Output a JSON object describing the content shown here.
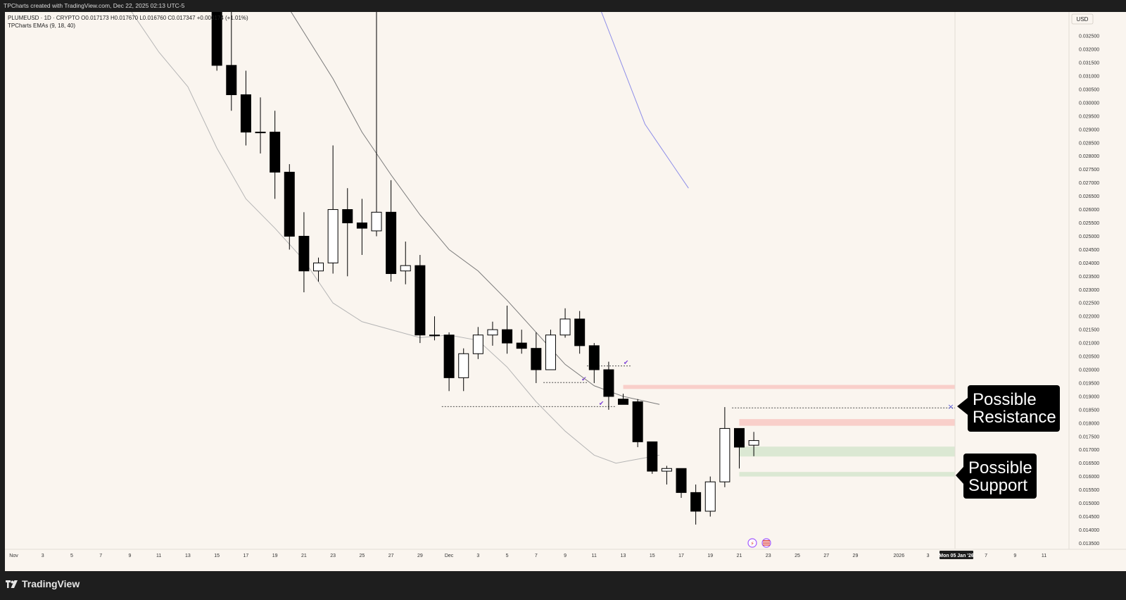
{
  "header": {
    "watermark_text": "TPCharts created with TradingView.com, Dec 22, 2025 02:13 UTC-5"
  },
  "legend": {
    "symbol_line": "PLUMEUSD · 1D · CRYPTO  O0.017173  H0.017670  L0.016760  C0.017347  +0.000174 (+1.01%)",
    "indicator_line": "TPCharts EMAs (9, 18, 40)"
  },
  "footer": {
    "logo_text": "TradingView"
  },
  "annotations": {
    "resistance": [
      "Possible",
      "Resistance"
    ],
    "support": [
      "Possible",
      "Support"
    ]
  },
  "colors": {
    "background": "#faf5ef",
    "chrome": "#1e1e1e",
    "candle_up_fill": "#ffffff",
    "candle_down_fill": "#000000",
    "resistance_zone": "#f8cbc5",
    "support_zone": "#d7e7cf",
    "ema9": "#b5b5b5",
    "ema18": "#7a7a7a",
    "ema40": "#8e8ee8",
    "check_marks": "#7b3fd6"
  },
  "chart_data": {
    "type": "candlestick",
    "symbol": "PLUMEUSD",
    "interval": "1D",
    "currency_label": "USD",
    "grid": false,
    "y_ticks": [
      "0.032500",
      "0.032000",
      "0.031500",
      "0.031000",
      "0.030500",
      "0.030000",
      "0.029500",
      "0.029000",
      "0.028500",
      "0.028000",
      "0.027500",
      "0.027000",
      "0.026500",
      "0.026000",
      "0.025500",
      "0.025000",
      "0.024500",
      "0.024000",
      "0.023500",
      "0.023000",
      "0.022500",
      "0.022000",
      "0.021500",
      "0.021000",
      "0.020500",
      "0.020000",
      "0.019500",
      "0.019000",
      "0.018500",
      "0.018000",
      "0.017500",
      "0.017000",
      "0.016500",
      "0.016000",
      "0.015500",
      "0.015000",
      "0.014500",
      "0.014000",
      "0.013500"
    ],
    "ylim": [
      0.0133,
      0.0334
    ],
    "x_tick_labels": [
      {
        "label": "Nov",
        "i": -7
      },
      {
        "label": "3",
        "i": -5
      },
      {
        "label": "5",
        "i": -3
      },
      {
        "label": "7",
        "i": -1
      },
      {
        "label": "9",
        "i": 1
      },
      {
        "label": "11",
        "i": 3
      },
      {
        "label": "13",
        "i": 5
      },
      {
        "label": "15",
        "i": 7
      },
      {
        "label": "17",
        "i": 9
      },
      {
        "label": "19",
        "i": 11
      },
      {
        "label": "21",
        "i": 13
      },
      {
        "label": "23",
        "i": 15
      },
      {
        "label": "25",
        "i": 17
      },
      {
        "label": "27",
        "i": 19
      },
      {
        "label": "29",
        "i": 21
      },
      {
        "label": "Dec",
        "i": 23
      },
      {
        "label": "3",
        "i": 25
      },
      {
        "label": "5",
        "i": 27
      },
      {
        "label": "7",
        "i": 29
      },
      {
        "label": "9",
        "i": 31
      },
      {
        "label": "11",
        "i": 33
      },
      {
        "label": "13",
        "i": 35
      },
      {
        "label": "15",
        "i": 37
      },
      {
        "label": "17",
        "i": 39
      },
      {
        "label": "19",
        "i": 41
      },
      {
        "label": "21",
        "i": 43
      },
      {
        "label": "23",
        "i": 45
      },
      {
        "label": "25",
        "i": 47
      },
      {
        "label": "27",
        "i": 49
      },
      {
        "label": "29",
        "i": 51
      },
      {
        "label": "2026",
        "i": 54
      },
      {
        "label": "3",
        "i": 56
      },
      {
        "label": "7",
        "i": 60
      },
      {
        "label": "9",
        "i": 62
      },
      {
        "label": "11",
        "i": 64
      }
    ],
    "crosshair_date_label": "Mon 05 Jan '26",
    "crosshair_i": 58,
    "candles": [
      {
        "d": "Nov 15",
        "o": 0.0337,
        "h": 0.0337,
        "l": 0.0312,
        "c": 0.0314
      },
      {
        "d": "Nov 16",
        "o": 0.0314,
        "h": 0.0337,
        "l": 0.0297,
        "c": 0.0303
      },
      {
        "d": "Nov 17",
        "o": 0.0303,
        "h": 0.0312,
        "l": 0.0284,
        "c": 0.0289
      },
      {
        "d": "Nov 18",
        "o": 0.0289,
        "h": 0.0302,
        "l": 0.0281,
        "c": 0.0289
      },
      {
        "d": "Nov 19",
        "o": 0.0289,
        "h": 0.0297,
        "l": 0.0264,
        "c": 0.0274
      },
      {
        "d": "Nov 20",
        "o": 0.0274,
        "h": 0.0277,
        "l": 0.0245,
        "c": 0.025
      },
      {
        "d": "Nov 21",
        "o": 0.025,
        "h": 0.0259,
        "l": 0.0229,
        "c": 0.0237
      },
      {
        "d": "Nov 22",
        "o": 0.0237,
        "h": 0.0242,
        "l": 0.0233,
        "c": 0.024
      },
      {
        "d": "Nov 23",
        "o": 0.024,
        "h": 0.0284,
        "l": 0.0236,
        "c": 0.026
      },
      {
        "d": "Nov 24",
        "o": 0.026,
        "h": 0.0268,
        "l": 0.0235,
        "c": 0.0255
      },
      {
        "d": "Nov 25",
        "o": 0.0255,
        "h": 0.0264,
        "l": 0.0243,
        "c": 0.0253
      },
      {
        "d": "Nov 26",
        "o": 0.0252,
        "h": 0.0337,
        "l": 0.025,
        "c": 0.0259
      },
      {
        "d": "Nov 27",
        "o": 0.0259,
        "h": 0.0271,
        "l": 0.0233,
        "c": 0.0236
      },
      {
        "d": "Nov 28",
        "o": 0.0237,
        "h": 0.0248,
        "l": 0.0232,
        "c": 0.0239
      },
      {
        "d": "Nov 29",
        "o": 0.0239,
        "h": 0.0243,
        "l": 0.021,
        "c": 0.0213
      },
      {
        "d": "Nov 30",
        "o": 0.0213,
        "h": 0.022,
        "l": 0.0211,
        "c": 0.0213
      },
      {
        "d": "Dec 1",
        "o": 0.0213,
        "h": 0.0214,
        "l": 0.0192,
        "c": 0.0197
      },
      {
        "d": "Dec 2",
        "o": 0.0197,
        "h": 0.0208,
        "l": 0.0192,
        "c": 0.0206
      },
      {
        "d": "Dec 3",
        "o": 0.0206,
        "h": 0.0216,
        "l": 0.0204,
        "c": 0.0213
      },
      {
        "d": "Dec 4",
        "o": 0.0213,
        "h": 0.0218,
        "l": 0.0209,
        "c": 0.0215
      },
      {
        "d": "Dec 5",
        "o": 0.0215,
        "h": 0.0224,
        "l": 0.0206,
        "c": 0.021
      },
      {
        "d": "Dec 6",
        "o": 0.021,
        "h": 0.0215,
        "l": 0.0206,
        "c": 0.0208
      },
      {
        "d": "Dec 7",
        "o": 0.0208,
        "h": 0.0214,
        "l": 0.0195,
        "c": 0.02
      },
      {
        "d": "Dec 8",
        "o": 0.02,
        "h": 0.0215,
        "l": 0.02,
        "c": 0.0213
      },
      {
        "d": "Dec 9",
        "o": 0.0213,
        "h": 0.0223,
        "l": 0.0212,
        "c": 0.0219
      },
      {
        "d": "Dec 10",
        "o": 0.0219,
        "h": 0.0222,
        "l": 0.0206,
        "c": 0.0209
      },
      {
        "d": "Dec 11",
        "o": 0.0209,
        "h": 0.021,
        "l": 0.0195,
        "c": 0.02
      },
      {
        "d": "Dec 12",
        "o": 0.02,
        "h": 0.0203,
        "l": 0.0185,
        "c": 0.019
      },
      {
        "d": "Dec 13",
        "o": 0.0189,
        "h": 0.0191,
        "l": 0.0187,
        "c": 0.0187
      },
      {
        "d": "Dec 14",
        "o": 0.0188,
        "h": 0.0189,
        "l": 0.0171,
        "c": 0.0173
      },
      {
        "d": "Dec 15",
        "o": 0.0173,
        "h": 0.0173,
        "l": 0.0161,
        "c": 0.0162
      },
      {
        "d": "Dec 16",
        "o": 0.0162,
        "h": 0.0164,
        "l": 0.0157,
        "c": 0.0163
      },
      {
        "d": "Dec 17",
        "o": 0.0163,
        "h": 0.0163,
        "l": 0.0152,
        "c": 0.0154
      },
      {
        "d": "Dec 18",
        "o": 0.0154,
        "h": 0.0157,
        "l": 0.0142,
        "c": 0.0147
      },
      {
        "d": "Dec 19",
        "o": 0.0147,
        "h": 0.016,
        "l": 0.0145,
        "c": 0.0158
      },
      {
        "d": "Dec 20",
        "o": 0.0158,
        "h": 0.0186,
        "l": 0.0156,
        "c": 0.0178
      },
      {
        "d": "Dec 21",
        "o": 0.0178,
        "h": 0.0178,
        "l": 0.0163,
        "c": 0.0171
      },
      {
        "d": "Dec 22",
        "o": 0.017173,
        "h": 0.01767,
        "l": 0.01676,
        "c": 0.017347
      }
    ],
    "first_candle_i": 7,
    "ema9": [
      [
        8.0,
        0.0335
      ],
      [
        10.0,
        0.0319
      ],
      [
        12.0,
        0.0306
      ],
      [
        14.0,
        0.0283
      ],
      [
        16.0,
        0.0264
      ],
      [
        18.0,
        0.0253
      ],
      [
        20.0,
        0.0241
      ],
      [
        22.0,
        0.0225
      ],
      [
        24.0,
        0.0218
      ],
      [
        26.0,
        0.0215
      ],
      [
        28.0,
        0.0212
      ],
      [
        30.0,
        0.0213
      ],
      [
        32.0,
        0.0211
      ],
      [
        34.0,
        0.0201
      ],
      [
        36.0,
        0.0188
      ],
      [
        38.0,
        0.0177
      ],
      [
        40.0,
        0.0168
      ],
      [
        41.5,
        0.0165
      ],
      [
        43.5,
        0.0167
      ],
      [
        44.5,
        0.0168
      ]
    ],
    "ema18": [
      [
        19.0,
        0.0335
      ],
      [
        22.0,
        0.0309
      ],
      [
        24.0,
        0.0289
      ],
      [
        26.0,
        0.0273
      ],
      [
        28.0,
        0.0258
      ],
      [
        30.0,
        0.0245
      ],
      [
        32.0,
        0.0237
      ],
      [
        34.0,
        0.0226
      ],
      [
        36.0,
        0.0214
      ],
      [
        38.0,
        0.0202
      ],
      [
        40.0,
        0.0194
      ],
      [
        42.0,
        0.019
      ],
      [
        44.5,
        0.0187
      ]
    ],
    "ema40": [
      [
        40.5,
        0.0334
      ],
      [
        42.0,
        0.0313
      ],
      [
        43.5,
        0.0292
      ],
      [
        44.5,
        0.0284
      ],
      [
        45.5,
        0.0276
      ],
      [
        46.5,
        0.0268
      ]
    ],
    "zones": [
      {
        "kind": "resistance",
        "from_i": 35,
        "to_i": 70,
        "y1": 0.01928,
        "y2": 0.01943
      },
      {
        "kind": "resistance",
        "from_i": 43,
        "to_i": 70,
        "y1": 0.0179,
        "y2": 0.01815
      },
      {
        "kind": "support",
        "from_i": 43,
        "to_i": 70,
        "y1": 0.01675,
        "y2": 0.01712
      },
      {
        "kind": "support",
        "from_i": 43,
        "to_i": 70,
        "y1": 0.016,
        "y2": 0.01617
      }
    ],
    "liquidity_lines": [
      {
        "from_i": 22.5,
        "to_i": 34.5,
        "y": 0.01862,
        "check_i": 33.5
      },
      {
        "from_i": 29.5,
        "to_i": 32.5,
        "y": 0.01952,
        "check_i": 32.3
      },
      {
        "from_i": 32.5,
        "to_i": 35.5,
        "y": 0.02014,
        "check_i": 35.2
      },
      {
        "from_i": 42.5,
        "to_i": 70,
        "y": 0.01857,
        "check_i": null
      }
    ],
    "x_marker": {
      "i": 69.6,
      "y": 0.01863
    }
  }
}
